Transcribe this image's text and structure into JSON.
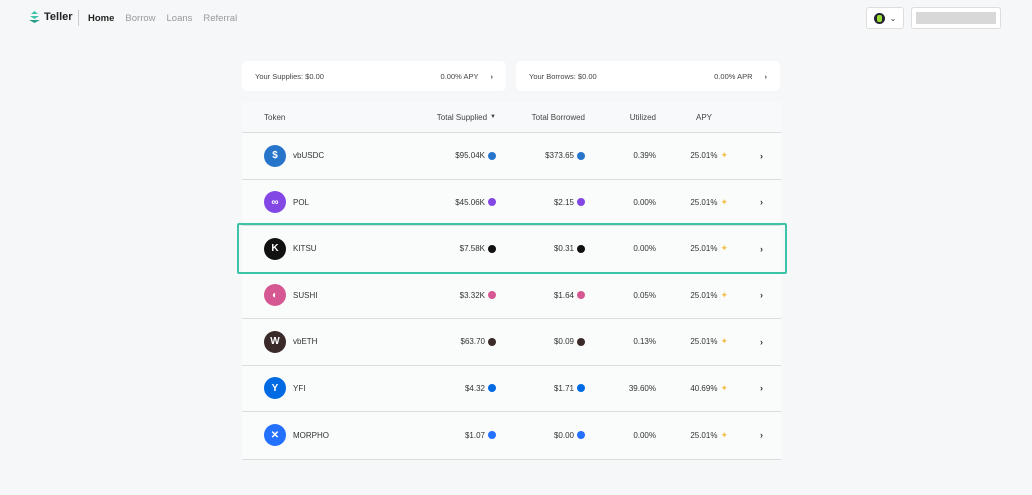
{
  "nav": {
    "brand": "Teller",
    "links": [
      "Home",
      "Borrow",
      "Loans",
      "Referral"
    ]
  },
  "summary": {
    "supplies": {
      "label": "Your Supplies: $0.00",
      "rate": "0.00% APY"
    },
    "borrows": {
      "label": "Your Borrows: $0.00",
      "rate": "0.00% APR"
    }
  },
  "table": {
    "headers": {
      "token": "Token",
      "supplied": "Total Supplied",
      "borrowed": "Total Borrowed",
      "utilized": "Utilized",
      "apy": "APY"
    },
    "rows": [
      {
        "token": "vbUSDC",
        "supplied": "$95.04K",
        "borrowed": "$373.65",
        "utilized": "0.39%",
        "apy": "25.01%",
        "color": "#2775ca",
        "glyph": "$"
      },
      {
        "token": "POL",
        "supplied": "$45.06K",
        "borrowed": "$2.15",
        "utilized": "0.00%",
        "apy": "25.01%",
        "color": "#8247e5",
        "glyph": "∞"
      },
      {
        "token": "KITSU",
        "supplied": "$7.58K",
        "borrowed": "$0.31",
        "utilized": "0.00%",
        "apy": "25.01%",
        "color": "#111111",
        "glyph": "K"
      },
      {
        "token": "SUSHI",
        "supplied": "$3.32K",
        "borrowed": "$1.64",
        "utilized": "0.05%",
        "apy": "25.01%",
        "color": "#d65892",
        "glyph": "◐"
      },
      {
        "token": "vbETH",
        "supplied": "$63.70",
        "borrowed": "$0.09",
        "utilized": "0.13%",
        "apy": "25.01%",
        "color": "#3a2a2a",
        "glyph": "W"
      },
      {
        "token": "YFI",
        "supplied": "$4.32",
        "borrowed": "$1.71",
        "utilized": "39.60%",
        "apy": "40.69%",
        "color": "#006ae3",
        "glyph": "Y"
      },
      {
        "token": "MORPHO",
        "supplied": "$1.07",
        "borrowed": "$0.00",
        "utilized": "0.00%",
        "apy": "25.01%",
        "color": "#2470ff",
        "glyph": "✕"
      }
    ]
  }
}
